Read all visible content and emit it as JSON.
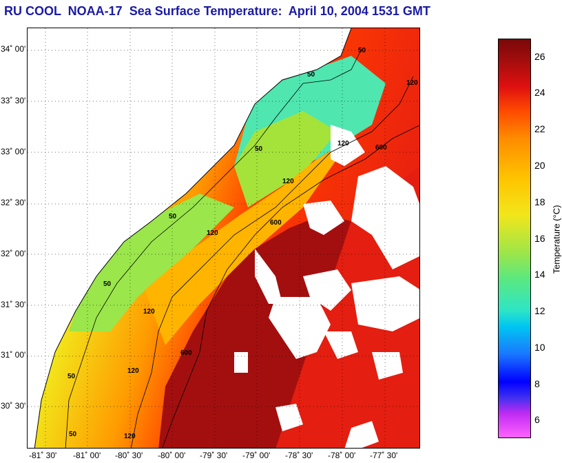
{
  "title": "RU COOL  NOAA-17  Sea Surface Temperature:  April 10, 2004 1531 GMT",
  "lat_ticks": [
    "34˚ 00'",
    "33˚ 30'",
    "33˚ 00'",
    "32˚ 30'",
    "32˚ 00'",
    "31˚ 30'",
    "31˚ 00'",
    "30˚ 30'"
  ],
  "lon_ticks": [
    "-81˚ 30'",
    "-81˚ 00'",
    "-80˚ 30'",
    "-80˚ 00'",
    "-79˚ 30'",
    "-79˚ 00'",
    "-78˚ 30'",
    "-78˚ 00'",
    "-77˚ 30'"
  ],
  "colorbar": {
    "label": "Temperature (°C)",
    "ticks": [
      "26",
      "24",
      "22",
      "20",
      "18",
      "16",
      "14",
      "12",
      "10",
      "8",
      "6"
    ],
    "range": [
      5,
      27
    ]
  },
  "contour_labels": [
    "50",
    "50",
    "50",
    "50",
    "50",
    "50",
    "50",
    "120",
    "120",
    "120",
    "120",
    "120",
    "120",
    "120",
    "600",
    "600",
    "600"
  ],
  "colors": {
    "title": "#1a1aa6",
    "land": "#ffffff",
    "cloud": "#ffffff",
    "coastline": "#000000",
    "nearshore": "#2ee6a0",
    "shelf": "#f2e61a",
    "gulf_stream": "#a00d0d"
  }
}
